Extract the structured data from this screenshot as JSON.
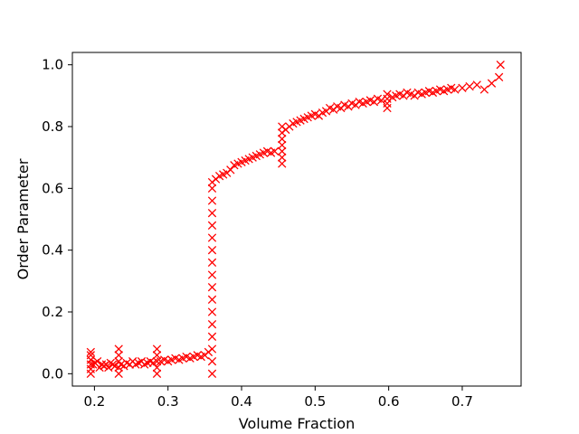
{
  "chart_data": {
    "type": "scatter",
    "title": "",
    "xlabel": "Volume Fraction",
    "ylabel": "Order Parameter",
    "xlim": [
      0.17,
      0.78
    ],
    "ylim": [
      -0.04,
      1.04
    ],
    "xticks": [
      0.2,
      0.3,
      0.4,
      0.5,
      0.6,
      0.7
    ],
    "xtick_labels": [
      "0.2",
      "0.3",
      "0.4",
      "0.5",
      "0.6",
      "0.7"
    ],
    "yticks": [
      0.0,
      0.2,
      0.4,
      0.6,
      0.8,
      1.0
    ],
    "ytick_labels": [
      "0.0",
      "0.2",
      "0.4",
      "0.6",
      "0.8",
      "1.0"
    ],
    "grid": false,
    "legend": "none",
    "marker": "x",
    "color": "#ff0000",
    "series": [
      {
        "points": [
          [
            0.195,
            0.0
          ],
          [
            0.195,
            0.015
          ],
          [
            0.195,
            0.03
          ],
          [
            0.195,
            0.045
          ],
          [
            0.195,
            0.06
          ],
          [
            0.195,
            0.07
          ],
          [
            0.198,
            0.03
          ],
          [
            0.201,
            0.035
          ],
          [
            0.204,
            0.04
          ],
          [
            0.207,
            0.02
          ],
          [
            0.21,
            0.03
          ],
          [
            0.213,
            0.025
          ],
          [
            0.216,
            0.03
          ],
          [
            0.219,
            0.02
          ],
          [
            0.222,
            0.035
          ],
          [
            0.225,
            0.03
          ],
          [
            0.228,
            0.025
          ],
          [
            0.233,
            0.0
          ],
          [
            0.233,
            0.02
          ],
          [
            0.233,
            0.04
          ],
          [
            0.233,
            0.06
          ],
          [
            0.233,
            0.08
          ],
          [
            0.236,
            0.03
          ],
          [
            0.24,
            0.025
          ],
          [
            0.244,
            0.035
          ],
          [
            0.248,
            0.03
          ],
          [
            0.252,
            0.04
          ],
          [
            0.256,
            0.03
          ],
          [
            0.26,
            0.035
          ],
          [
            0.264,
            0.04
          ],
          [
            0.268,
            0.03
          ],
          [
            0.272,
            0.035
          ],
          [
            0.276,
            0.04
          ],
          [
            0.28,
            0.035
          ],
          [
            0.285,
            0.0
          ],
          [
            0.285,
            0.02
          ],
          [
            0.285,
            0.04
          ],
          [
            0.285,
            0.06
          ],
          [
            0.285,
            0.08
          ],
          [
            0.29,
            0.04
          ],
          [
            0.295,
            0.045
          ],
          [
            0.3,
            0.04
          ],
          [
            0.305,
            0.045
          ],
          [
            0.31,
            0.05
          ],
          [
            0.315,
            0.045
          ],
          [
            0.32,
            0.05
          ],
          [
            0.325,
            0.055
          ],
          [
            0.33,
            0.05
          ],
          [
            0.335,
            0.055
          ],
          [
            0.34,
            0.06
          ],
          [
            0.345,
            0.055
          ],
          [
            0.35,
            0.06
          ],
          [
            0.355,
            0.07
          ],
          [
            0.36,
            0.0
          ],
          [
            0.36,
            0.04
          ],
          [
            0.36,
            0.08
          ],
          [
            0.36,
            0.12
          ],
          [
            0.36,
            0.16
          ],
          [
            0.36,
            0.2
          ],
          [
            0.36,
            0.24
          ],
          [
            0.36,
            0.28
          ],
          [
            0.36,
            0.32
          ],
          [
            0.36,
            0.36
          ],
          [
            0.36,
            0.4
          ],
          [
            0.36,
            0.44
          ],
          [
            0.36,
            0.48
          ],
          [
            0.36,
            0.52
          ],
          [
            0.36,
            0.56
          ],
          [
            0.36,
            0.6
          ],
          [
            0.36,
            0.62
          ],
          [
            0.365,
            0.63
          ],
          [
            0.37,
            0.64
          ],
          [
            0.375,
            0.645
          ],
          [
            0.38,
            0.65
          ],
          [
            0.385,
            0.66
          ],
          [
            0.39,
            0.675
          ],
          [
            0.395,
            0.68
          ],
          [
            0.4,
            0.685
          ],
          [
            0.405,
            0.69
          ],
          [
            0.41,
            0.695
          ],
          [
            0.415,
            0.7
          ],
          [
            0.42,
            0.705
          ],
          [
            0.425,
            0.71
          ],
          [
            0.43,
            0.715
          ],
          [
            0.435,
            0.72
          ],
          [
            0.44,
            0.715
          ],
          [
            0.445,
            0.72
          ],
          [
            0.455,
            0.68
          ],
          [
            0.455,
            0.7
          ],
          [
            0.455,
            0.72
          ],
          [
            0.455,
            0.74
          ],
          [
            0.455,
            0.76
          ],
          [
            0.455,
            0.78
          ],
          [
            0.455,
            0.8
          ],
          [
            0.46,
            0.79
          ],
          [
            0.465,
            0.8
          ],
          [
            0.47,
            0.81
          ],
          [
            0.475,
            0.815
          ],
          [
            0.48,
            0.82
          ],
          [
            0.485,
            0.825
          ],
          [
            0.49,
            0.83
          ],
          [
            0.495,
            0.835
          ],
          [
            0.5,
            0.84
          ],
          [
            0.505,
            0.835
          ],
          [
            0.51,
            0.845
          ],
          [
            0.515,
            0.85
          ],
          [
            0.52,
            0.86
          ],
          [
            0.525,
            0.855
          ],
          [
            0.53,
            0.865
          ],
          [
            0.535,
            0.86
          ],
          [
            0.54,
            0.87
          ],
          [
            0.545,
            0.865
          ],
          [
            0.55,
            0.875
          ],
          [
            0.555,
            0.87
          ],
          [
            0.56,
            0.88
          ],
          [
            0.565,
            0.875
          ],
          [
            0.57,
            0.88
          ],
          [
            0.575,
            0.885
          ],
          [
            0.58,
            0.88
          ],
          [
            0.585,
            0.89
          ],
          [
            0.59,
            0.885
          ],
          [
            0.598,
            0.86
          ],
          [
            0.598,
            0.875
          ],
          [
            0.598,
            0.89
          ],
          [
            0.598,
            0.905
          ],
          [
            0.605,
            0.895
          ],
          [
            0.61,
            0.9
          ],
          [
            0.615,
            0.905
          ],
          [
            0.62,
            0.9
          ],
          [
            0.625,
            0.91
          ],
          [
            0.63,
            0.905
          ],
          [
            0.635,
            0.9
          ],
          [
            0.64,
            0.91
          ],
          [
            0.645,
            0.905
          ],
          [
            0.65,
            0.91
          ],
          [
            0.655,
            0.915
          ],
          [
            0.66,
            0.91
          ],
          [
            0.665,
            0.915
          ],
          [
            0.67,
            0.92
          ],
          [
            0.675,
            0.915
          ],
          [
            0.68,
            0.92
          ],
          [
            0.685,
            0.925
          ],
          [
            0.69,
            0.92
          ],
          [
            0.7,
            0.925
          ],
          [
            0.71,
            0.93
          ],
          [
            0.72,
            0.935
          ],
          [
            0.73,
            0.92
          ],
          [
            0.74,
            0.94
          ],
          [
            0.75,
            0.96
          ],
          [
            0.752,
            1.0
          ]
        ]
      }
    ]
  }
}
